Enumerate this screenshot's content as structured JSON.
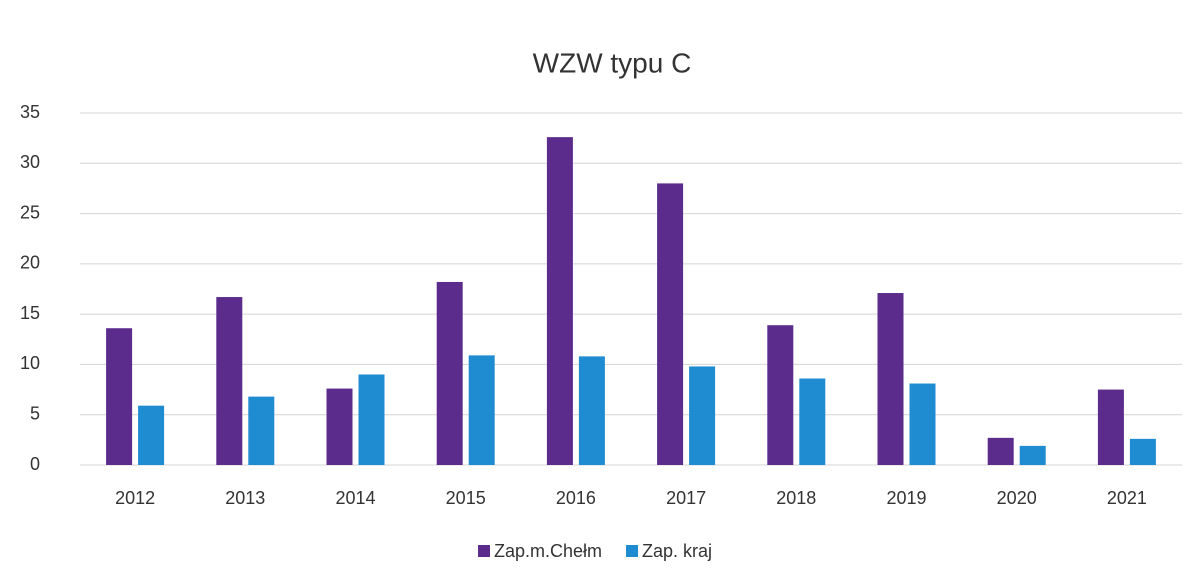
{
  "chart_data": {
    "type": "bar",
    "title": "WZW typu C",
    "categories": [
      "2012",
      "2013",
      "2014",
      "2015",
      "2016",
      "2017",
      "2018",
      "2019",
      "2020",
      "2021"
    ],
    "series": [
      {
        "name": "Zap.m.Chełm",
        "color": "#5b2c8c",
        "values": [
          13.6,
          16.7,
          7.6,
          18.2,
          32.6,
          28.0,
          13.9,
          17.1,
          2.7,
          7.5
        ]
      },
      {
        "name": "Zap. kraj",
        "color": "#1f8bd0",
        "values": [
          5.9,
          6.8,
          9.0,
          10.9,
          10.8,
          9.8,
          8.6,
          8.1,
          1.9,
          2.6
        ]
      }
    ],
    "ylim": [
      0,
      35
    ],
    "yticks": [
      0,
      5,
      10,
      15,
      20,
      25,
      30,
      35
    ],
    "grid": true,
    "legend": "bottom"
  }
}
